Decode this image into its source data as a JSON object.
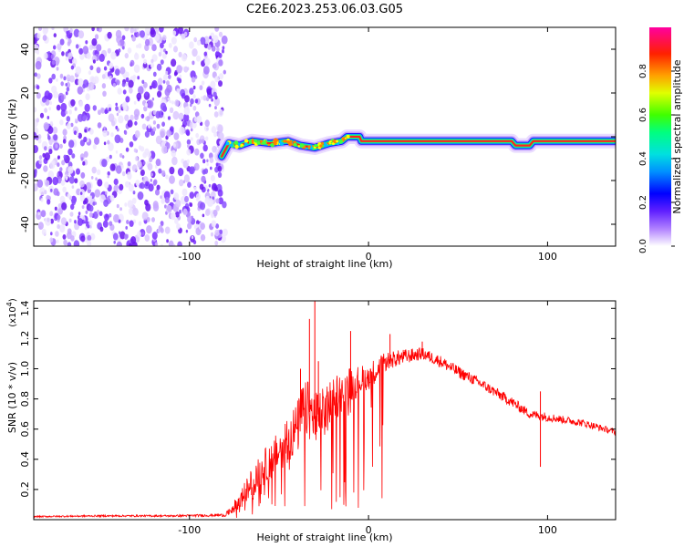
{
  "title": "C2E6.2023.253.06.03.G05",
  "chart_data": [
    {
      "type": "heatmap",
      "xlabel": "Height of straight line (km)",
      "ylabel": "Frequency (Hz)",
      "xlim": [
        -187,
        138
      ],
      "ylim": [
        -50,
        50
      ],
      "x_ticks": [
        -100,
        0,
        100
      ],
      "y_ticks": [
        -40,
        -20,
        0,
        20,
        40
      ],
      "colorbar": {
        "label": "Normalized spectral amplitude",
        "range": [
          0.0,
          1.0
        ],
        "ticks": [
          0.0,
          0.2,
          0.4,
          0.6,
          0.8
        ],
        "tick_labels": [
          "0.0",
          "0.2",
          "0.4",
          "0.6",
          "0.8"
        ]
      },
      "noise_region_x": [
        -187,
        -80
      ],
      "signal_trace": [
        {
          "x": -82,
          "freq": -9
        },
        {
          "x": -78,
          "freq": -3
        },
        {
          "x": -72,
          "freq": -4
        },
        {
          "x": -65,
          "freq": -2
        },
        {
          "x": -55,
          "freq": -3
        },
        {
          "x": -45,
          "freq": -2
        },
        {
          "x": -38,
          "freq": -4
        },
        {
          "x": -30,
          "freq": -5
        },
        {
          "x": -22,
          "freq": -3
        },
        {
          "x": -15,
          "freq": -2
        },
        {
          "x": -12,
          "freq": 0
        },
        {
          "x": -5,
          "freq": 0
        },
        {
          "x": -4,
          "freq": -2
        },
        {
          "x": 20,
          "freq": -2
        },
        {
          "x": 80,
          "freq": -2
        },
        {
          "x": 82,
          "freq": -4
        },
        {
          "x": 90,
          "freq": -4
        },
        {
          "x": 92,
          "freq": -2
        },
        {
          "x": 138,
          "freq": -2
        }
      ]
    },
    {
      "type": "line",
      "xlabel": "Height of straight line (km)",
      "ylabel": "SNR (10 * v/v)",
      "yscale_label": "(x10",
      "yscale_exp": "4",
      "yscale_close": ")",
      "xlim": [
        -187,
        138
      ],
      "ylim": [
        0.0,
        1.45
      ],
      "x_ticks": [
        -100,
        0,
        100
      ],
      "y_ticks": [
        0.2,
        0.4,
        0.6,
        0.8,
        1.0,
        1.2,
        1.4
      ],
      "y_tick_labels": [
        "0.2",
        "0.4",
        "0.6",
        "0.8",
        "1.0",
        "1.2",
        "1.4"
      ],
      "series": [
        {
          "color": "#ff0000",
          "x": [
            -187,
            -150,
            -110,
            -80,
            -72,
            -65,
            -58,
            -50,
            -45,
            -40,
            -36,
            -32,
            -28,
            -25,
            -20,
            -15,
            -10,
            -5,
            0,
            5,
            10,
            20,
            30,
            40,
            50,
            60,
            70,
            80,
            90,
            100,
            110,
            120,
            138
          ],
          "values": [
            0.02,
            0.025,
            0.025,
            0.03,
            0.12,
            0.25,
            0.35,
            0.45,
            0.55,
            0.6,
            0.75,
            0.7,
            0.65,
            0.7,
            0.8,
            0.85,
            0.9,
            0.92,
            0.95,
            1.0,
            1.05,
            1.08,
            1.1,
            1.05,
            0.98,
            0.92,
            0.85,
            0.78,
            0.7,
            0.68,
            0.66,
            0.64,
            0.58
          ],
          "noise": [
            0.005,
            0.006,
            0.006,
            0.01,
            0.06,
            0.1,
            0.12,
            0.14,
            0.16,
            0.18,
            0.2,
            0.2,
            0.2,
            0.18,
            0.16,
            0.14,
            0.12,
            0.1,
            0.09,
            0.08,
            0.06,
            0.05,
            0.04,
            0.04,
            0.04,
            0.035,
            0.035,
            0.035,
            0.03,
            0.03,
            0.025,
            0.025,
            0.02
          ]
        }
      ],
      "peaks": [
        {
          "x": -30,
          "value": 1.45
        },
        {
          "x": -33,
          "value": 1.33
        },
        {
          "x": -38,
          "value": 1.0
        },
        {
          "x": -28,
          "value": 1.05
        },
        {
          "x": -10,
          "value": 1.25
        },
        {
          "x": 12,
          "value": 1.23
        },
        {
          "x": 30,
          "value": 1.18
        },
        {
          "x": 96,
          "value": 0.35
        },
        {
          "x": 96,
          "value": 0.85
        }
      ]
    }
  ]
}
